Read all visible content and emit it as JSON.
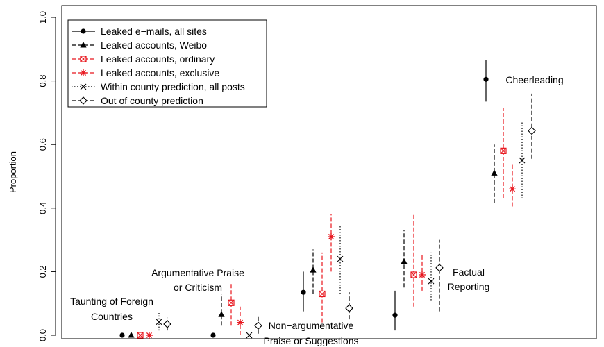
{
  "chart_data": {
    "type": "scatter",
    "title": "",
    "xlabel": "",
    "ylabel": "Proportion",
    "ylim": [
      0,
      1
    ],
    "yticks": [
      "0.0",
      "0.2",
      "0.4",
      "0.6",
      "0.8",
      "1.0"
    ],
    "grid": false,
    "legend_position": "top-left",
    "categories": [
      {
        "name": "taunting",
        "label_lines": [
          "Taunting of Foreign",
          "Countries"
        ]
      },
      {
        "name": "argumentative",
        "label_lines": [
          "Argumentative Praise",
          "or Criticism"
        ]
      },
      {
        "name": "non-argumentative",
        "label_lines": [
          "Non−argumentative",
          "Praise or Suggestions"
        ]
      },
      {
        "name": "factual",
        "label_lines": [
          "Factual",
          "Reporting"
        ]
      },
      {
        "name": "cheerleading",
        "label_lines": [
          "Cheerleading"
        ]
      }
    ],
    "series": [
      {
        "name": "Leaked e−mails, all sites",
        "marker": "circle",
        "color": "#000000",
        "line": "solid",
        "values": [
          0.0,
          0.0,
          0.135,
          0.063,
          0.805
        ],
        "ci": [
          [
            0.0,
            0.0
          ],
          [
            0.0,
            0.0
          ],
          [
            0.075,
            0.2
          ],
          [
            0.015,
            0.14
          ],
          [
            0.735,
            0.865
          ]
        ]
      },
      {
        "name": "Leaked accounts, Weibo",
        "marker": "triangle",
        "color": "#000000",
        "line": "dashed",
        "values": [
          0.0,
          0.065,
          0.205,
          0.232,
          0.51
        ],
        "ci": [
          [
            0.0,
            0.0
          ],
          [
            0.03,
            0.13
          ],
          [
            0.13,
            0.27
          ],
          [
            0.15,
            0.33
          ],
          [
            0.415,
            0.6
          ]
        ]
      },
      {
        "name": "Leaked accounts, ordinary",
        "marker": "square-x",
        "color": "#e8141c",
        "line": "dashed",
        "values": [
          0.0,
          0.102,
          0.13,
          0.19,
          0.58
        ],
        "ci": [
          [
            0.0,
            0.0
          ],
          [
            0.03,
            0.165
          ],
          [
            0.04,
            0.26
          ],
          [
            0.09,
            0.38
          ],
          [
            0.43,
            0.715
          ]
        ]
      },
      {
        "name": "Leaked accounts, exclusive",
        "marker": "asterisk",
        "color": "#e8141c",
        "line": "dashed",
        "values": [
          0.0,
          0.04,
          0.31,
          0.19,
          0.46
        ],
        "ci": [
          [
            0.0,
            0.0
          ],
          [
            0.0,
            0.09
          ],
          [
            0.2,
            0.38
          ],
          [
            0.14,
            0.255
          ],
          [
            0.405,
            0.54
          ]
        ]
      },
      {
        "name": "Within county prediction, all posts",
        "marker": "cross",
        "color": "#000000",
        "line": "dotted",
        "values": [
          0.042,
          0.0,
          0.24,
          0.17,
          0.55
        ],
        "ci": [
          [
            0.015,
            0.07
          ],
          [
            0.0,
            0.0
          ],
          [
            0.13,
            0.345
          ],
          [
            0.11,
            0.26
          ],
          [
            0.43,
            0.67
          ]
        ]
      },
      {
        "name": "Out of county prediction",
        "marker": "diamond",
        "color": "#000000",
        "line": "dashed",
        "values": [
          0.035,
          0.03,
          0.085,
          0.212,
          0.643
        ],
        "ci": [
          [
            0.015,
            0.055
          ],
          [
            0.005,
            0.06
          ],
          [
            0.05,
            0.135
          ],
          [
            0.075,
            0.3
          ],
          [
            0.555,
            0.76
          ]
        ]
      }
    ]
  }
}
